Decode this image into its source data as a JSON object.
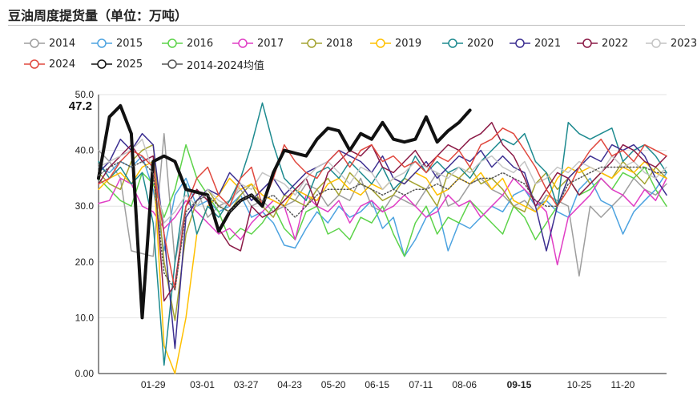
{
  "chart_data": {
    "type": "line",
    "title": "豆油周度提货量（单位：万吨）",
    "xlabel": "",
    "ylabel": "",
    "ylim": [
      0,
      50
    ],
    "yticks": [
      "0.00",
      "10.0",
      "20.0",
      "30.0",
      "40.0",
      "50.0"
    ],
    "xticks": [
      "01-29",
      "03-01",
      "03-27",
      "04-23",
      "05-20",
      "06-15",
      "07-11",
      "08-06",
      "09-15",
      "10-25",
      "11-20"
    ],
    "xtick_positions": [
      5,
      9.5,
      13.5,
      17.5,
      21.5,
      25.5,
      29.5,
      33.5,
      38.5,
      44,
      48
    ],
    "highlight_xtick": "09-15",
    "weeks": 53,
    "grid": "horizontal",
    "legend_position": "top",
    "annotations": [
      {
        "text": "47.2"
      }
    ],
    "series": [
      {
        "name": "2014",
        "color": "#9e9e9e",
        "width": 1.5,
        "dash": "",
        "values": [
          40,
          38,
          35,
          22,
          21.5,
          21,
          43,
          20,
          30,
          33,
          28,
          30,
          31,
          33,
          30,
          31,
          29,
          30,
          31,
          34,
          33,
          30,
          32,
          31,
          35,
          30,
          29,
          32,
          31,
          30,
          33,
          36,
          30,
          31,
          34,
          35,
          33,
          32,
          30,
          31,
          29,
          32,
          31,
          30,
          17.5,
          30,
          28,
          30,
          32,
          35,
          33,
          32,
          34
        ]
      },
      {
        "name": "2015",
        "color": "#4da3e0",
        "width": 1.5,
        "dash": "",
        "values": [
          37,
          36,
          38,
          37,
          39,
          33,
          22,
          32,
          35,
          30,
          31,
          29,
          30,
          32,
          28,
          29,
          27,
          23,
          22.5,
          26,
          29,
          27,
          30,
          28,
          29,
          31,
          26,
          28,
          21,
          24,
          28,
          30,
          22,
          27,
          26,
          28,
          30,
          29,
          32,
          33,
          30,
          31,
          29,
          28,
          33,
          35,
          31,
          30,
          25,
          29,
          31,
          33,
          36
        ]
      },
      {
        "name": "2016",
        "color": "#5dd34a",
        "width": 1.5,
        "dash": "",
        "values": [
          35,
          33,
          31,
          30,
          36,
          34,
          28,
          33,
          41,
          35,
          32,
          29,
          24,
          26,
          25,
          27,
          30,
          26,
          24,
          29,
          30,
          25,
          26,
          24,
          28,
          27,
          30,
          25,
          21,
          27,
          30,
          25,
          28,
          27,
          31,
          29,
          27,
          25,
          30,
          28,
          24,
          27,
          30,
          35,
          32,
          33,
          35,
          33,
          36,
          35,
          37,
          33,
          30
        ]
      },
      {
        "name": "2017",
        "color": "#e03ec5",
        "width": 1.5,
        "dash": "",
        "values": [
          30.5,
          31,
          35,
          34,
          30,
          29,
          26,
          28,
          31,
          29,
          27,
          25,
          26,
          24,
          27,
          29,
          31,
          30,
          24,
          32,
          30,
          29,
          31,
          27,
          30,
          31,
          29,
          30,
          32,
          30,
          28,
          29,
          32,
          30,
          31,
          28,
          30,
          32,
          35,
          33,
          31,
          29,
          19.5,
          28,
          30,
          32,
          35,
          33,
          32,
          30,
          33,
          31,
          35
        ]
      },
      {
        "name": "2018",
        "color": "#a4a332",
        "width": 1.5,
        "dash": "",
        "values": [
          36,
          34,
          33,
          38,
          40,
          41,
          20,
          9.5,
          25,
          31,
          33,
          30,
          29,
          32,
          34,
          30,
          28,
          32,
          31,
          30,
          33,
          35,
          32,
          36,
          34,
          33,
          31,
          32,
          35,
          34,
          33,
          30,
          36,
          35,
          37,
          34,
          35,
          33,
          30,
          29,
          34,
          36,
          33,
          35,
          37,
          34,
          36,
          35,
          38,
          36,
          34,
          37,
          35
        ]
      },
      {
        "name": "2019",
        "color": "#ffc000",
        "width": 1.5,
        "dash": "",
        "values": [
          33,
          35,
          36,
          34,
          37,
          38,
          5,
          0,
          10,
          25,
          30,
          32,
          35,
          33,
          34,
          32,
          31,
          30,
          33,
          32,
          31,
          34,
          35,
          33,
          32,
          34,
          33,
          35,
          34,
          36,
          35,
          32,
          33,
          35,
          34,
          36,
          33,
          35,
          31,
          30,
          29,
          31,
          35,
          37,
          36,
          37,
          36,
          35,
          37,
          36,
          38,
          36,
          35
        ]
      },
      {
        "name": "2020",
        "color": "#1d8a8f",
        "width": 1.5,
        "dash": "",
        "values": [
          38,
          35,
          37,
          34,
          36,
          27,
          1.5,
          20,
          34,
          25,
          30,
          28,
          31,
          35,
          41,
          48.5,
          41,
          35,
          33,
          31,
          36,
          37,
          35,
          38,
          36,
          34,
          37,
          33,
          35,
          39,
          36,
          38,
          36,
          37,
          35,
          38,
          40,
          42,
          41,
          43,
          38,
          36,
          30,
          45,
          43,
          42,
          43,
          44,
          38,
          40,
          41,
          39,
          36
        ]
      },
      {
        "name": "2021",
        "color": "#3c2f91",
        "width": 1.5,
        "dash": "",
        "values": [
          36,
          38,
          42,
          40,
          43,
          41,
          25,
          4.5,
          28,
          31,
          33,
          32,
          36,
          34,
          31,
          33,
          35,
          32,
          34,
          36,
          37,
          38,
          40,
          39,
          38,
          36,
          39,
          35,
          34,
          36,
          38,
          35,
          37,
          39,
          38,
          40,
          37,
          39,
          37,
          36,
          30,
          22,
          30,
          35,
          37,
          39,
          38,
          41,
          40,
          41,
          39,
          35,
          32
        ]
      },
      {
        "name": "2022",
        "color": "#8b1a46",
        "width": 1.5,
        "dash": "",
        "values": [
          34,
          37,
          39,
          41,
          38,
          39,
          13,
          16,
          30,
          33,
          31,
          26,
          23,
          22,
          30,
          28,
          29,
          31,
          33,
          35,
          30,
          36,
          38,
          40,
          39,
          41,
          37,
          36,
          38,
          40,
          37,
          39,
          41,
          40,
          42,
          43,
          45,
          41,
          39,
          35,
          30,
          33,
          36,
          35,
          32,
          34,
          36,
          38,
          41,
          40,
          38,
          37,
          39
        ]
      },
      {
        "name": "2023",
        "color": "#c4c4c4",
        "width": 1.5,
        "dash": "",
        "values": [
          37,
          38,
          39,
          40,
          42,
          36,
          27,
          29,
          32,
          30,
          33,
          31,
          30,
          34,
          33,
          36,
          35,
          34,
          32,
          35,
          37,
          38,
          36,
          34,
          37,
          36,
          33,
          35,
          36,
          38,
          37,
          36,
          35,
          37,
          36,
          38,
          39,
          37,
          36,
          38,
          34,
          35,
          37,
          36,
          38,
          37,
          36,
          39,
          37,
          38,
          36,
          35,
          37
        ]
      },
      {
        "name": "2024",
        "color": "#e0483e",
        "width": 1.5,
        "dash": "",
        "values": [
          34,
          35,
          38,
          40,
          39,
          37,
          25,
          15,
          30,
          35,
          37,
          32,
          30,
          35,
          37,
          30,
          35,
          41,
          38,
          36,
          35,
          38,
          40,
          37,
          40,
          41,
          38,
          39,
          37,
          38,
          36,
          39,
          38,
          40,
          37,
          41,
          42,
          44,
          43,
          40,
          37,
          33,
          30,
          33,
          37,
          40,
          42,
          39,
          40,
          38,
          41,
          40,
          39
        ]
      },
      {
        "name": "2025",
        "color": "#111111",
        "width": 4,
        "dash": "",
        "values": [
          35,
          46,
          48,
          43,
          10,
          38,
          39,
          38,
          33,
          32.5,
          32,
          25.5,
          29,
          31,
          32,
          30,
          36,
          40,
          39.5,
          39,
          42,
          44,
          43.5,
          40,
          43,
          42,
          45,
          42,
          41.5,
          42,
          46,
          41.5,
          43.5,
          45,
          47.2
        ]
      },
      {
        "name": "2014-2024均值",
        "color": "#555555",
        "width": 1.5,
        "dash": "1.5 2.5",
        "values": [
          35.5,
          37,
          38,
          37,
          38,
          36,
          18,
          15,
          29,
          31,
          32,
          30,
          29,
          31,
          32,
          31,
          32,
          30,
          28,
          30,
          32,
          33,
          33,
          33,
          34,
          33,
          32,
          33,
          32,
          33,
          33,
          34,
          33,
          35,
          34,
          35,
          35,
          36,
          35,
          34,
          31,
          30,
          30,
          34,
          35,
          36,
          37,
          37,
          37,
          37,
          37,
          36,
          36
        ]
      }
    ]
  }
}
